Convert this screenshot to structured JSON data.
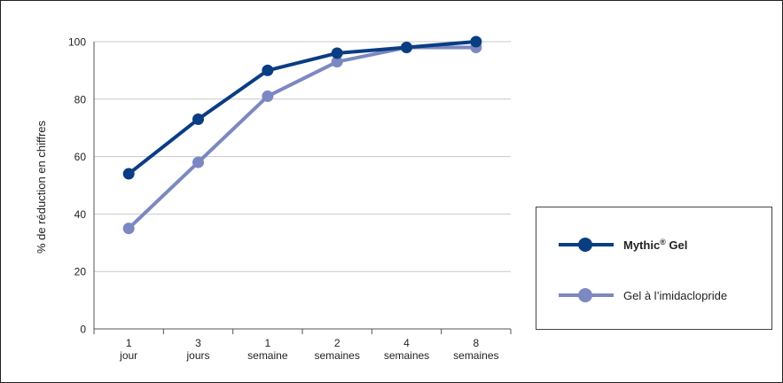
{
  "chart_data": {
    "type": "line",
    "title": "",
    "xlabel": "",
    "ylabel": "% de réduction en chiffres",
    "ylim": [
      0,
      100
    ],
    "yticks": [
      0,
      20,
      40,
      60,
      80,
      100
    ],
    "grid": true,
    "legend_position": "right",
    "categories": [
      {
        "line1": "1",
        "line2": "jour"
      },
      {
        "line1": "3",
        "line2": "jours"
      },
      {
        "line1": "1",
        "line2": "semaine"
      },
      {
        "line1": "2",
        "line2": "semaines"
      },
      {
        "line1": "4",
        "line2": "semaines"
      },
      {
        "line1": "8",
        "line2": "semaines"
      }
    ],
    "series": [
      {
        "name": "Mythic",
        "name_sup": "®",
        "name_suffix": " Gel",
        "color": "#0a3d82",
        "bold": true,
        "values": [
          54,
          73,
          90,
          96,
          98,
          100
        ]
      },
      {
        "name": "Gel à l’imidaclopride",
        "name_sup": "",
        "name_suffix": "",
        "color": "#7b88c2",
        "bold": false,
        "values": [
          35,
          58,
          81,
          93,
          98,
          98
        ]
      }
    ]
  }
}
